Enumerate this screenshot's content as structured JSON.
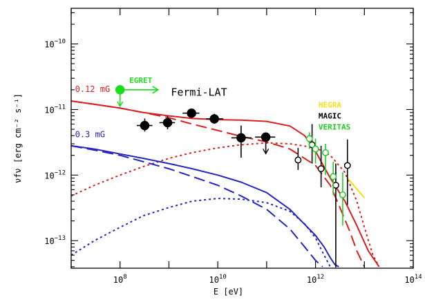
{
  "chart_data": {
    "type": "scatter",
    "title": "",
    "xlabel": "E [eV]",
    "ylabel": "νfν [erg cm⁻² s⁻¹]",
    "xscale": "log",
    "yscale": "log",
    "xlim": [
      10000000.0,
      100000000000000.0
    ],
    "ylim": [
      3.8e-14,
      3.5e-10
    ],
    "x_ticks": [
      {
        "base": "10",
        "exp": "8",
        "value": 100000000.0
      },
      {
        "base": "10",
        "exp": "10",
        "value": 10000000000.0
      },
      {
        "base": "10",
        "exp": "12",
        "value": 1000000000000.0
      },
      {
        "base": "10",
        "exp": "14",
        "value": 100000000000000.0
      }
    ],
    "y_ticks": [
      {
        "base": "10",
        "exp": "−10",
        "value": 1e-10
      },
      {
        "base": "10",
        "exp": "−11",
        "value": 1e-11
      },
      {
        "base": "10",
        "exp": "−12",
        "value": 1e-12
      },
      {
        "base": "10",
        "exp": "−13",
        "value": 1e-13
      }
    ],
    "curve_labels": [
      {
        "text": "0.12 mG",
        "color": "#d81e1e",
        "x": 12000000.0,
        "y": 1.85e-11
      },
      {
        "text": "0.3 mG",
        "color": "#2424c0",
        "x": 12000000.0,
        "y": 3.8e-12
      }
    ],
    "instrument_labels": [
      {
        "text": "EGRET",
        "color": "#22dd22",
        "x": 155000000.0,
        "y": 2.55e-11
      },
      {
        "text": "Fermi-LAT",
        "color": "#000000",
        "x": 1100000000.0,
        "y": 1.62e-11
      },
      {
        "text": "HEGRA",
        "color": "#f2e21a",
        "x": 1150000000000.0,
        "y": 1.08e-11
      },
      {
        "text": "MAGIC",
        "color": "#000000",
        "x": 1150000000000.0,
        "y": 7.3e-12
      },
      {
        "text": "VERITAS",
        "color": "#22cc22",
        "x": 1150000000000.0,
        "y": 4.95e-12
      }
    ],
    "series": [
      {
        "color": "#d81e1e",
        "dash": "solid",
        "x": [
          10000000.0,
          30000000.0,
          100000000.0,
          300000000.0,
          1000000000.0,
          3000000000.0,
          10000000000.0,
          30000000000.0,
          100000000000.0,
          300000000000.0,
          600000000000.0,
          1000000000000.0,
          2000000000000.0,
          4000000000000.0,
          7000000000000.0,
          12000000000000.0,
          20000000000000.0
        ],
        "y": [
          1.35e-11,
          1.2e-11,
          1.05e-11,
          9e-12,
          8e-12,
          7.3e-12,
          7e-12,
          6.9e-12,
          6.6e-12,
          5.6e-12,
          4e-12,
          2.3e-12,
          9e-13,
          4e-13,
          1.7e-13,
          7e-14,
          4e-14
        ]
      },
      {
        "color": "#d81e1e",
        "dash": "long",
        "x": [
          10000000.0,
          30000000.0,
          100000000.0,
          300000000.0,
          1000000000.0,
          3000000000.0,
          10000000000.0,
          30000000000.0,
          100000000000.0,
          300000000000.0,
          1000000000000.0,
          2000000000000.0,
          3000000000000.0,
          5000000000000.0,
          7000000000000.0,
          10000000000000.0
        ],
        "y": [
          1.35e-11,
          1.2e-11,
          1.05e-11,
          9e-12,
          7.5e-12,
          6e-12,
          4.8e-12,
          3.9e-12,
          3.2e-12,
          2.5e-12,
          1.4e-12,
          7e-13,
          3.5e-13,
          1.4e-13,
          7e-14,
          4e-14
        ]
      },
      {
        "color": "#d81e1e",
        "dash": "short",
        "x": [
          10000000.0,
          30000000.0,
          100000000.0,
          300000000.0,
          1000000000.0,
          3000000000.0,
          10000000000.0,
          30000000000.0,
          100000000000.0,
          300000000000.0,
          1000000000000.0,
          2000000000000.0,
          4000000000000.0,
          7000000000000.0,
          10000000000000.0,
          15000000000000.0,
          20000000000000.0
        ],
        "y": [
          4.8e-13,
          7e-13,
          1e-12,
          1.35e-12,
          1.8e-12,
          2.2e-12,
          2.6e-12,
          2.9e-12,
          3.1e-12,
          3e-12,
          2.6e-12,
          2e-12,
          1.1e-12,
          4e-13,
          1.6e-13,
          6e-14,
          4e-14
        ]
      },
      {
        "color": "#2424c0",
        "dash": "solid",
        "x": [
          10000000.0,
          30000000.0,
          100000000.0,
          300000000.0,
          1000000000.0,
          3000000000.0,
          10000000000.0,
          30000000000.0,
          100000000000.0,
          300000000000.0,
          1000000000000.0,
          1500000000000.0,
          2000000000000.0,
          2500000000000.0,
          3000000000000.0
        ],
        "y": [
          2.8e-12,
          2.5e-12,
          2.1e-12,
          1.8e-12,
          1.5e-12,
          1.25e-12,
          1e-12,
          7.8e-13,
          5.4e-13,
          3e-13,
          1.2e-13,
          8e-14,
          5.5e-14,
          4.3e-14,
          4e-14
        ]
      },
      {
        "color": "#2424c0",
        "dash": "long",
        "x": [
          10000000.0,
          30000000.0,
          100000000.0,
          300000000.0,
          1000000000.0,
          3000000000.0,
          10000000000.0,
          30000000000.0,
          100000000000.0,
          300000000000.0,
          600000000000.0,
          1000000000000.0,
          1400000000000.0
        ],
        "y": [
          2.8e-12,
          2.4e-12,
          2e-12,
          1.6e-12,
          1.25e-12,
          9.5e-13,
          7e-13,
          4.8e-13,
          3e-13,
          1.5e-13,
          8e-14,
          5e-14,
          4e-14
        ]
      },
      {
        "color": "#2424c0",
        "dash": "short",
        "x": [
          10000000.0,
          30000000.0,
          100000000.0,
          300000000.0,
          1000000000.0,
          3000000000.0,
          10000000000.0,
          30000000000.0,
          100000000000.0,
          300000000000.0,
          600000000000.0,
          1000000000000.0,
          1500000000000.0,
          2000000000000.0
        ],
        "y": [
          6e-14,
          1e-13,
          1.6e-13,
          2.4e-13,
          3.2e-13,
          4e-13,
          4.4e-13,
          4.3e-13,
          3.8e-13,
          2.8e-13,
          1.8e-13,
          1.1e-13,
          6e-14,
          4e-14
        ]
      },
      {
        "color": "#f2e21a",
        "dash": "solid",
        "x": [
          4500000000000.0,
          10000000000000.0
        ],
        "y": [
          9e-13,
          4.5e-13
        ]
      }
    ],
    "points": [
      {
        "marker": "filled",
        "color": "#18dd18",
        "x": 100000000.0,
        "y": 2e-11,
        "xerr": [
          100000000.0,
          600000000.0
        ],
        "yerr": null,
        "upper_limit": true
      },
      {
        "marker": "filled",
        "color": "#000000",
        "x": 320000000.0,
        "y": 5.7e-12,
        "xerr": [
          220000000.0,
          460000000.0
        ],
        "yerr": [
          4.6e-12,
          7.3e-12
        ],
        "upper_limit": false
      },
      {
        "marker": "filled",
        "color": "#000000",
        "x": 940000000.0,
        "y": 6.3e-12,
        "xerr": [
          640000000.0,
          1330000000.0
        ],
        "yerr": [
          5e-12,
          8e-12
        ],
        "upper_limit": false
      },
      {
        "marker": "filled",
        "color": "#000000",
        "x": 2900000000.0,
        "y": 8.8e-12,
        "xerr": [
          1900000000.0,
          4200000000.0
        ],
        "yerr": [
          7.6e-12,
          1e-11
        ],
        "upper_limit": false
      },
      {
        "marker": "filled",
        "color": "#000000",
        "x": 8500000000.0,
        "y": 7.2e-12,
        "xerr": [
          5700000000.0,
          13000000000.0
        ],
        "yerr": [
          6.1e-12,
          8.6e-12
        ],
        "upper_limit": false
      },
      {
        "marker": "filled",
        "color": "#000000",
        "x": 30000000000.0,
        "y": 3.7e-12,
        "xerr": [
          19000000000.0,
          49000000000.0
        ],
        "yerr": [
          1.85e-12,
          5.7e-12
        ],
        "upper_limit": false
      },
      {
        "marker": "filled",
        "color": "#000000",
        "x": 96000000000.0,
        "y": 3.8e-12,
        "xerr": [
          58000000000.0,
          150000000000.0
        ],
        "yerr": null,
        "upper_limit": true
      },
      {
        "marker": "open",
        "color": "#000000",
        "x": 440000000000.0,
        "y": 1.7e-12,
        "xerr": null,
        "yerr": [
          1.2e-12,
          2.6e-12
        ],
        "upper_limit": false
      },
      {
        "marker": "open",
        "color": "#000000",
        "x": 850000000000.0,
        "y": 2.9e-12,
        "xerr": null,
        "yerr": [
          1.5e-12,
          6e-12
        ],
        "upper_limit": false
      },
      {
        "marker": "open",
        "color": "#000000",
        "x": 1300000000000.0,
        "y": 1.25e-12,
        "xerr": null,
        "yerr": [
          6.5e-13,
          2.8e-12
        ],
        "upper_limit": false
      },
      {
        "marker": "open",
        "color": "#000000",
        "x": 2600000000000.0,
        "y": 7e-13,
        "xerr": null,
        "yerr": [
          3.9e-14,
          1.5e-12
        ],
        "upper_limit": false
      },
      {
        "marker": "open",
        "color": "#000000",
        "x": 4500000000000.0,
        "y": 1.4e-12,
        "xerr": null,
        "yerr": [
          3.5e-13,
          3.5e-12
        ],
        "upper_limit": false
      },
      {
        "marker": "open",
        "color": "#22cc22",
        "x": 750000000000.0,
        "y": 3.6e-12,
        "xerr": null,
        "yerr": [
          2.5e-12,
          4.5e-12
        ],
        "upper_limit": false
      },
      {
        "marker": "open",
        "color": "#22cc22",
        "x": 1000000000000.0,
        "y": 2.5e-12,
        "xerr": null,
        "yerr": [
          1.5e-12,
          3.6e-12
        ],
        "upper_limit": false
      },
      {
        "marker": "open",
        "color": "#22cc22",
        "x": 1600000000000.0,
        "y": 2.2e-12,
        "xerr": null,
        "yerr": [
          1e-12,
          3e-12
        ],
        "upper_limit": false
      },
      {
        "marker": "open",
        "color": "#22cc22",
        "x": 2300000000000.0,
        "y": 9.5e-13,
        "xerr": null,
        "yerr": [
          5e-13,
          1.6e-12
        ],
        "upper_limit": false
      },
      {
        "marker": "open",
        "color": "#22cc22",
        "x": 3600000000000.0,
        "y": 5e-13,
        "xerr": null,
        "yerr": [
          1.7e-13,
          1.1e-12
        ],
        "upper_limit": false
      }
    ],
    "grid": false,
    "legend": "none"
  }
}
